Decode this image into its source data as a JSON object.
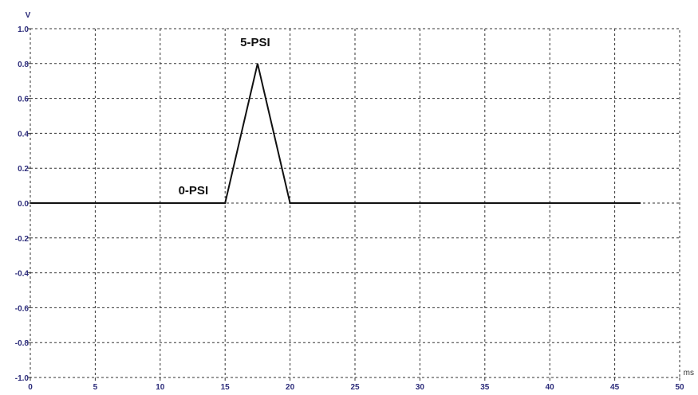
{
  "chart_data": {
    "type": "line",
    "title": "",
    "xlabel": "ms",
    "ylabel": "V",
    "xlim": [
      0,
      50
    ],
    "ylim": [
      -1.0,
      1.0
    ],
    "x_ticks": [
      0,
      5,
      10,
      15,
      20,
      25,
      30,
      35,
      40,
      45,
      50
    ],
    "y_ticks": [
      1.0,
      0.8,
      0.6,
      0.4,
      0.2,
      0.0,
      -0.2,
      -0.4,
      -0.6,
      -0.8,
      -1.0
    ],
    "x_tick_labels": [
      "0",
      "5",
      "10",
      "15",
      "20",
      "25",
      "30",
      "35",
      "40",
      "45",
      "50"
    ],
    "y_tick_labels": [
      "1.0",
      "0.8",
      "0.6",
      "0.4",
      "0.2",
      "0.0",
      "-0.2",
      "-0.4",
      "-0.6",
      "-0.8",
      "-1.0"
    ],
    "grid": true,
    "series": [
      {
        "x": [
          0,
          15,
          17.5,
          20,
          47
        ],
        "y": [
          0.0,
          0.0,
          0.8,
          0.0,
          0.0
        ]
      }
    ],
    "annotations": [
      {
        "text": "5-PSI",
        "x": 17.5,
        "y": 0.8
      },
      {
        "text": "0-PSI",
        "x": 12,
        "y": 0.05
      }
    ],
    "colors": {
      "line": "#111111",
      "tick_text": "#2b2b7a",
      "grid": "#333333"
    }
  }
}
